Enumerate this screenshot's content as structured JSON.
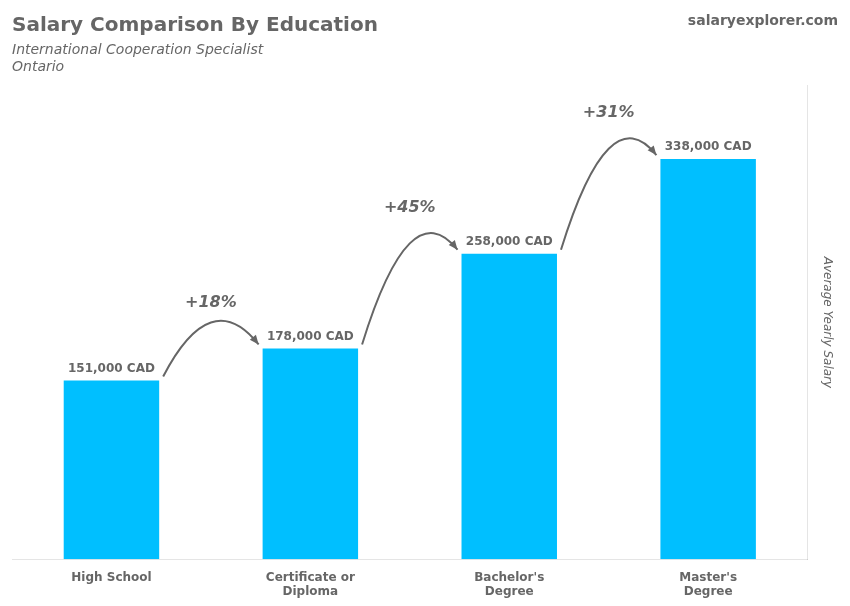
{
  "chart_data": {
    "type": "bar",
    "title": "Salary Comparison By Education",
    "subtitle": [
      "International Cooperation Specialist",
      "Ontario"
    ],
    "annotations": [
      "salaryexplorer.com"
    ],
    "ylabel": "Average Yearly Salary",
    "categories": [
      "High School",
      "Certificate or\nDiploma",
      "Bachelor's\nDegree",
      "Master's\nDegree"
    ],
    "values": [
      151000,
      178000,
      258000,
      338000
    ],
    "value_labels": [
      "151,000 CAD",
      "178,000 CAD",
      "258,000 CAD",
      "338,000 CAD"
    ],
    "data_labels": true,
    "changes": [
      18,
      45,
      31
    ],
    "change_labels": [
      "+18%",
      "+45%",
      "+31%"
    ],
    "color": "#00BFFF",
    "ylim": [
      0,
      400000
    ],
    "grid": false,
    "tick_labels": "x"
  }
}
